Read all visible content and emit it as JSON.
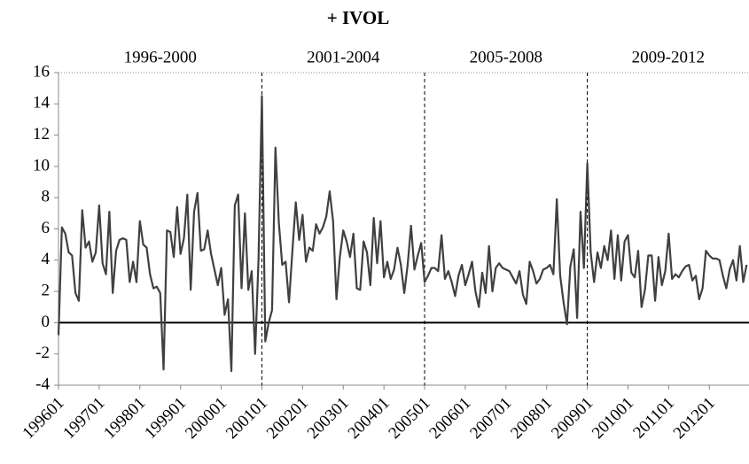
{
  "chart_data": {
    "type": "line",
    "title": "+ IVOL",
    "categories": [
      "199601",
      null,
      null,
      null,
      null,
      null,
      null,
      null,
      null,
      null,
      null,
      null,
      "199701",
      null,
      null,
      null,
      null,
      null,
      null,
      null,
      null,
      null,
      null,
      null,
      "199801",
      null,
      null,
      null,
      null,
      null,
      null,
      null,
      null,
      null,
      null,
      null,
      "199901",
      null,
      null,
      null,
      null,
      null,
      null,
      null,
      null,
      null,
      null,
      null,
      "200001",
      null,
      null,
      null,
      null,
      null,
      null,
      null,
      null,
      null,
      null,
      null,
      "200101",
      null,
      null,
      null,
      null,
      null,
      null,
      null,
      null,
      null,
      null,
      null,
      "200201",
      null,
      null,
      null,
      null,
      null,
      null,
      null,
      null,
      null,
      null,
      null,
      "200301",
      null,
      null,
      null,
      null,
      null,
      null,
      null,
      null,
      null,
      null,
      null,
      "200401",
      null,
      null,
      null,
      null,
      null,
      null,
      null,
      null,
      null,
      null,
      null,
      "200501",
      null,
      null,
      null,
      null,
      null,
      null,
      null,
      null,
      null,
      null,
      null,
      "200601",
      null,
      null,
      null,
      null,
      null,
      null,
      null,
      null,
      null,
      null,
      null,
      "200701",
      null,
      null,
      null,
      null,
      null,
      null,
      null,
      null,
      null,
      null,
      null,
      "200801",
      null,
      null,
      null,
      null,
      null,
      null,
      null,
      null,
      null,
      null,
      null,
      "200901",
      null,
      null,
      null,
      null,
      null,
      null,
      null,
      null,
      null,
      null,
      null,
      "201001",
      null,
      null,
      null,
      null,
      null,
      null,
      null,
      null,
      null,
      null,
      null,
      "201101",
      null,
      null,
      null,
      null,
      null,
      null,
      null,
      null,
      null,
      null,
      null,
      "201201",
      null,
      null,
      null,
      null,
      null,
      null,
      null,
      null,
      null,
      null,
      null
    ],
    "values": [
      -0.8,
      6.1,
      5.7,
      4.5,
      4.3,
      1.9,
      1.4,
      7.2,
      4.8,
      5.2,
      3.9,
      4.5,
      7.5,
      3.8,
      3.1,
      7.1,
      1.9,
      4.6,
      5.3,
      5.4,
      5.3,
      2.6,
      3.9,
      2.6,
      6.5,
      5.0,
      4.8,
      3.1,
      2.2,
      2.3,
      1.9,
      -3.0,
      5.9,
      5.8,
      4.2,
      7.4,
      4.4,
      5.4,
      8.2,
      2.1,
      7.1,
      8.3,
      4.6,
      4.7,
      5.9,
      4.4,
      3.4,
      2.4,
      3.5,
      0.5,
      1.5,
      -3.1,
      7.5,
      8.2,
      2.2,
      7.0,
      2.1,
      3.3,
      -2.0,
      4.0,
      14.5,
      -1.2,
      0.0,
      0.8,
      11.2,
      6.4,
      3.7,
      3.9,
      1.3,
      4.6,
      7.7,
      5.3,
      6.9,
      3.9,
      4.8,
      4.6,
      6.3,
      5.7,
      6.1,
      6.8,
      8.4,
      6.5,
      1.5,
      4.2,
      5.9,
      5.2,
      4.2,
      5.7,
      2.2,
      2.1,
      5.2,
      4.5,
      2.4,
      6.7,
      3.8,
      6.5,
      2.9,
      3.9,
      2.8,
      3.4,
      4.8,
      3.7,
      1.9,
      3.7,
      6.2,
      3.4,
      4.3,
      5.1,
      2.6,
      3.0,
      3.5,
      3.5,
      3.3,
      5.6,
      2.8,
      3.3,
      2.6,
      1.7,
      3.0,
      3.7,
      2.4,
      3.1,
      3.9,
      2.0,
      1.0,
      3.2,
      1.9,
      4.9,
      2.0,
      3.5,
      3.8,
      3.5,
      3.4,
      3.3,
      2.9,
      2.5,
      3.3,
      1.8,
      1.2,
      3.9,
      3.3,
      2.5,
      2.8,
      3.4,
      3.5,
      3.7,
      3.1,
      7.9,
      3.0,
      1.3,
      -0.1,
      3.6,
      4.7,
      0.3,
      7.1,
      3.5,
      10.2,
      4.5,
      2.6,
      4.5,
      3.5,
      4.9,
      4.0,
      5.9,
      2.8,
      5.6,
      2.7,
      5.2,
      5.6,
      3.2,
      2.9,
      4.6,
      1.0,
      2.1,
      4.3,
      4.3,
      1.4,
      4.2,
      2.4,
      3.3,
      5.7,
      2.8,
      3.1,
      2.9,
      3.3,
      3.6,
      3.7,
      2.7,
      3.0,
      1.5,
      2.2,
      4.6,
      4.3,
      4.1,
      4.1,
      4.0,
      3.0,
      2.2,
      3.4,
      4.0,
      2.7,
      4.9,
      2.6,
      3.7
    ],
    "color": "#404040",
    "ylim": [
      -4,
      16
    ],
    "yticks": [
      -4,
      -2,
      0,
      2,
      4,
      6,
      8,
      10,
      12,
      14,
      16
    ],
    "periods": [
      "1996-2000",
      "2001-2004",
      "2005-2008",
      "2009-2012"
    ]
  }
}
